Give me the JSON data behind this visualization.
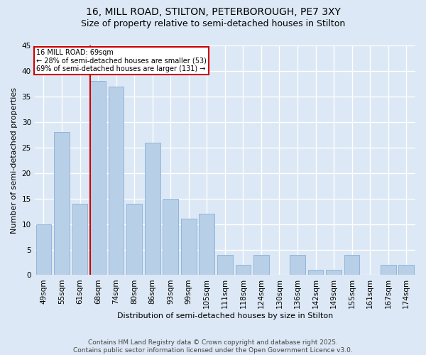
{
  "title1": "16, MILL ROAD, STILTON, PETERBOROUGH, PE7 3XY",
  "title2": "Size of property relative to semi-detached houses in Stilton",
  "xlabel": "Distribution of semi-detached houses by size in Stilton",
  "ylabel": "Number of semi-detached properties",
  "categories": [
    "49sqm",
    "55sqm",
    "61sqm",
    "68sqm",
    "74sqm",
    "80sqm",
    "86sqm",
    "93sqm",
    "99sqm",
    "105sqm",
    "111sqm",
    "118sqm",
    "124sqm",
    "130sqm",
    "136sqm",
    "142sqm",
    "149sqm",
    "155sqm",
    "161sqm",
    "167sqm",
    "174sqm"
  ],
  "values": [
    10,
    28,
    14,
    38,
    37,
    14,
    26,
    15,
    11,
    12,
    4,
    2,
    4,
    0,
    4,
    1,
    1,
    4,
    0,
    2,
    2
  ],
  "bar_color": "#b8cfe8",
  "bar_edge_color": "#8aafd4",
  "background_color": "#dce8f5",
  "grid_color": "#ffffff",
  "vline_color": "#cc0000",
  "vline_index": 3,
  "annotation_title": "16 MILL ROAD: 69sqm",
  "annotation_line2": "← 28% of semi-detached houses are smaller (53)",
  "annotation_line3": "69% of semi-detached houses are larger (131) →",
  "annotation_box_color": "#ffffff",
  "annotation_box_edge": "#cc0000",
  "ylim": [
    0,
    45
  ],
  "yticks": [
    0,
    5,
    10,
    15,
    20,
    25,
    30,
    35,
    40,
    45
  ],
  "footer": "Contains HM Land Registry data © Crown copyright and database right 2025.\nContains public sector information licensed under the Open Government Licence v3.0.",
  "title1_fontsize": 10,
  "title2_fontsize": 9,
  "xlabel_fontsize": 8,
  "ylabel_fontsize": 8,
  "tick_fontsize": 7.5,
  "footer_fontsize": 6.5
}
